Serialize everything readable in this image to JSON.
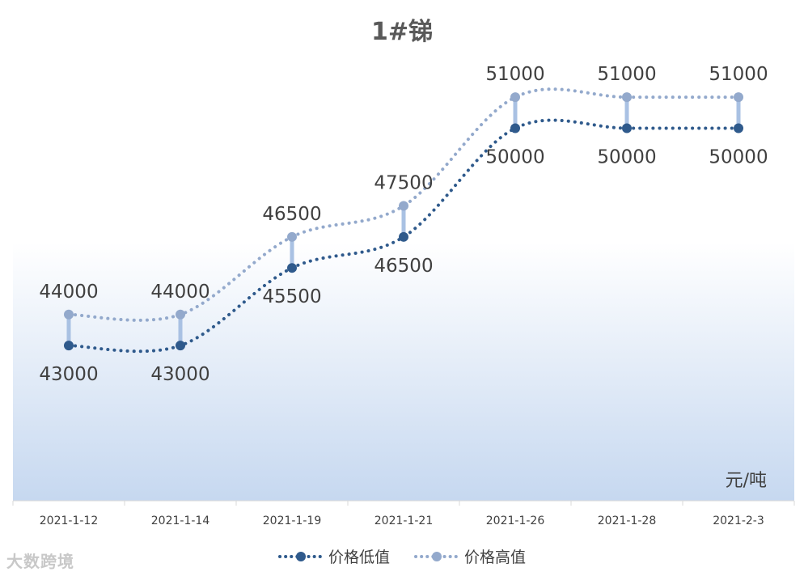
{
  "chart_data": {
    "type": "line",
    "title": "1#锑",
    "unit_label": "元/吨",
    "categories": [
      "2021-1-12",
      "2021-1-14",
      "2021-1-19",
      "2021-1-21",
      "2021-1-26",
      "2021-1-28",
      "2021-2-3"
    ],
    "series": [
      {
        "name": "价格低值",
        "values": [
          43000,
          43000,
          45500,
          46500,
          50000,
          50000,
          50000
        ],
        "color": "#2f5a8c",
        "label_position": "below"
      },
      {
        "name": "价格高值",
        "values": [
          44000,
          44000,
          46500,
          47500,
          51000,
          51000,
          51000
        ],
        "color": "#93a9cc",
        "label_position": "above"
      }
    ],
    "ylim": [
      38000,
      54000
    ],
    "line_style": "dotted-smooth",
    "high_low_lines": true,
    "grid": false,
    "legend": "bottom",
    "background_gradient": [
      "#ffffff",
      "#c6d8f0"
    ]
  },
  "watermark": "大数跨境"
}
